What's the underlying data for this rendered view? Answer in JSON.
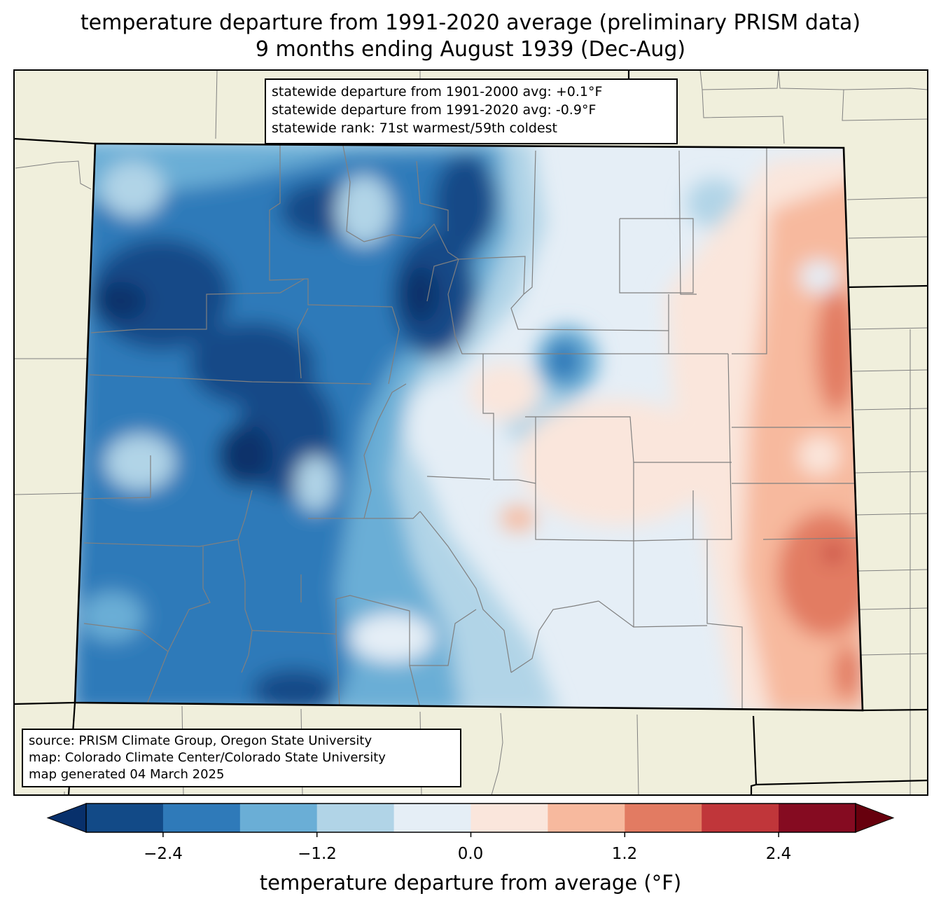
{
  "title": {
    "line1": "temperature departure from 1991-2020 average (preliminary PRISM data)",
    "line2": "9 months ending August 1939 (Dec-Aug)"
  },
  "stats": {
    "line1": "statewide departure from 1901-2000 avg: +0.1°F",
    "line2": "statewide departure from 1991-2020 avg: -0.9°F",
    "line3": "statewide rank: 71st warmest/59th coldest"
  },
  "source": {
    "line1": "source: PRISM Climate Group, Oregon State University",
    "line2": "map: Colorado Climate Center/Colorado State University",
    "line3": "map generated 04 March 2025"
  },
  "colorbar": {
    "label": "temperature departure from average (°F)",
    "ticks": [
      "−2.4",
      "−1.2",
      "0.0",
      "1.2",
      "2.4"
    ],
    "bins": [
      "#08306b",
      "#124a87",
      "#2f7ab9",
      "#6aaed6",
      "#b1d4e7",
      "#e5eef6",
      "#fae6dc",
      "#f7b99e",
      "#e27b62",
      "#c0363a",
      "#850b21",
      "#67000d"
    ]
  },
  "map_colors": {
    "background": "#f0efdc",
    "state_border": "#000000",
    "county_lines": "#808080"
  }
}
